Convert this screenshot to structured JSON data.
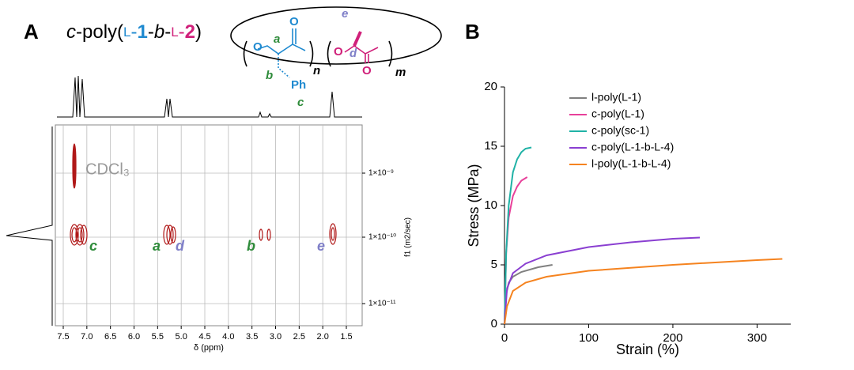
{
  "panel_a": {
    "label": "A",
    "title_parts": [
      "c",
      "-poly(",
      "L",
      "-",
      "1",
      "-",
      "b",
      "-",
      "L",
      "-",
      "2",
      ")"
    ],
    "structure": {
      "o1": "O",
      "a": "a",
      "o2": "O",
      "b": "b",
      "ph": "Ph",
      "c": "c",
      "n": "n",
      "o3": "O",
      "e": "e",
      "d": "d",
      "o4": "O",
      "m": "m"
    },
    "x_axis": {
      "label": "δ (ppm)",
      "ticks": [
        "7.5",
        "7.0",
        "6.5",
        "6.0",
        "5.5",
        "5.0",
        "4.5",
        "4.0",
        "3.5",
        "3.0",
        "2.5",
        "2.0",
        "1.5"
      ]
    },
    "y_axis": {
      "label": "f1 (m2/sec)",
      "ticks": [
        "1×10⁻⁹",
        "1×10⁻¹⁰",
        "1×10⁻¹¹"
      ]
    },
    "annotations": {
      "solvent": "CDCl₃",
      "c": "c",
      "a": "a",
      "d": "d",
      "b": "b",
      "e": "e"
    }
  },
  "chart_data": {
    "type": "line",
    "label": "B",
    "x_label": "Strain (%)",
    "y_label": "Stress (MPa)",
    "xlim": [
      0,
      340
    ],
    "xticks": [
      0,
      100,
      200,
      300
    ],
    "ylim": [
      0,
      20
    ],
    "yticks": [
      0,
      5,
      10,
      15,
      20
    ],
    "legend": "top-right",
    "series": [
      {
        "name": "l-poly(L-1)",
        "color": "#808080",
        "x": [
          0,
          2,
          5,
          10,
          20,
          40,
          57
        ],
        "values": [
          0,
          2.5,
          3.5,
          4,
          4.4,
          4.8,
          5.0
        ]
      },
      {
        "name": "c-poly(L-1)",
        "color": "#e8409a",
        "x": [
          0,
          2,
          5,
          10,
          15,
          20,
          27
        ],
        "values": [
          0,
          6,
          9,
          10.8,
          11.6,
          12.1,
          12.4
        ]
      },
      {
        "name": "c-poly(sc-1)",
        "color": "#20b2a6",
        "x": [
          0,
          2,
          5,
          10,
          15,
          20,
          25,
          32
        ],
        "values": [
          0,
          6,
          10,
          12.8,
          13.9,
          14.5,
          14.8,
          14.9
        ]
      },
      {
        "name": "c-poly(L-1-b-L-4)",
        "color": "#8a3fd1",
        "x": [
          0,
          3,
          10,
          25,
          50,
          100,
          150,
          200,
          232
        ],
        "values": [
          0,
          3,
          4.3,
          5.1,
          5.8,
          6.5,
          6.9,
          7.2,
          7.3
        ]
      },
      {
        "name": "l-poly(L-1-b-L-4)",
        "color": "#f5831f",
        "x": [
          0,
          3,
          10,
          25,
          50,
          100,
          200,
          300,
          330
        ],
        "values": [
          0,
          1.5,
          2.8,
          3.5,
          4.0,
          4.5,
          5.0,
          5.4,
          5.5
        ]
      }
    ]
  }
}
